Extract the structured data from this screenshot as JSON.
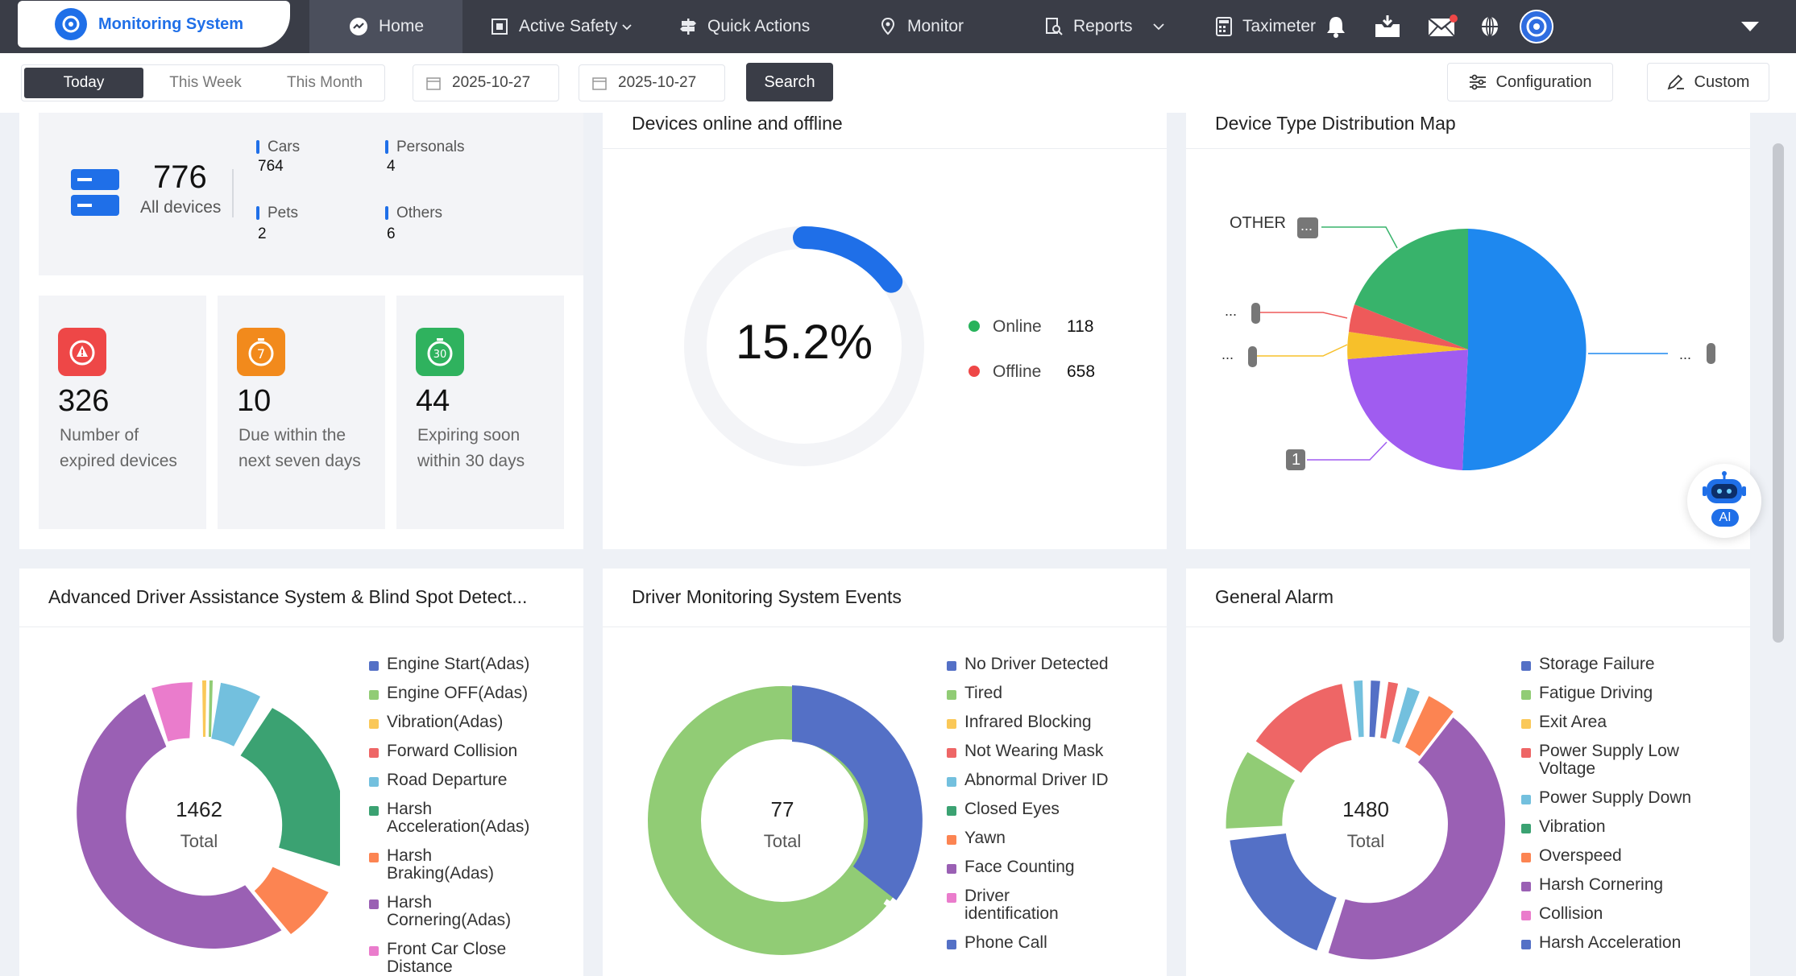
{
  "brand": {
    "title": "Monitoring System"
  },
  "nav": {
    "home": "Home",
    "active_safety": "Active Safety",
    "quick_actions": "Quick Actions",
    "monitor": "Monitor",
    "reports": "Reports",
    "taximeter": "Taximeter"
  },
  "toolbar": {
    "ranges": [
      "Today",
      "This Week",
      "This Month"
    ],
    "start_date": "2025-10-27",
    "end_date": "2025-10-27",
    "search": "Search",
    "configuration": "Configuration",
    "custom": "Custom"
  },
  "devices": {
    "total": "776",
    "total_label": "All devices",
    "cars_label": "Cars",
    "cars": "764",
    "personals_label": "Personals",
    "personals": "4",
    "pets_label": "Pets",
    "pets": "2",
    "others_label": "Others",
    "others": "6"
  },
  "alarms": [
    {
      "value": "326",
      "label": "Number of expired devices",
      "color": "#ee4747"
    },
    {
      "value": "10",
      "label": "Due within the next seven days",
      "color": "#f28a1c"
    },
    {
      "value": "44",
      "label": "Expiring soon within 30 days",
      "color": "#2fb25e"
    }
  ],
  "online_panel": {
    "title": "Devices online and offline",
    "percent": "15.2%",
    "online_label": "Online",
    "online": "118",
    "offline_label": "Offline",
    "offline": "658",
    "online_color": "#27b35b",
    "offline_color": "#ee4747"
  },
  "type_panel": {
    "title": "Device Type Distribution Map",
    "labels": {
      "other": "OTHER",
      "dots": "...",
      "one": "1"
    }
  },
  "adas_panel": {
    "title": "Advanced Driver Assistance System & Blind Spot Detect...",
    "total": "1462",
    "total_label": "Total",
    "legend": [
      "Engine Start(Adas)",
      "Engine OFF(Adas)",
      "Vibration(Adas)",
      "Forward Collision",
      "Road Departure",
      "Harsh Acceleration(Adas)",
      "Harsh Braking(Adas)",
      "Harsh Cornering(Adas)",
      "Front Car Close Distance"
    ]
  },
  "dms_panel": {
    "title": "Driver Monitoring System Events",
    "total": "77",
    "total_label": "Total",
    "legend": [
      "No Driver Detected",
      "Tired",
      "Infrared Blocking",
      "Not Wearing Mask",
      "Abnormal Driver ID",
      "Closed Eyes",
      "Yawn",
      "Face Counting",
      "Driver identification",
      "Phone Call"
    ]
  },
  "general_panel": {
    "title": "General Alarm",
    "total": "1480",
    "total_label": "Total",
    "legend": [
      "Storage Failure",
      "Fatigue Driving",
      "Exit Area",
      "Power Supply Low Voltage",
      "Power Supply Down",
      "Vibration",
      "Overspeed",
      "Harsh Cornering",
      "Collision",
      "Harsh Acceleration"
    ]
  },
  "legend_colors": [
    "#5470c6",
    "#91cc75",
    "#fac858",
    "#ee6666",
    "#73c0de",
    "#3ba272",
    "#fc8452",
    "#9a60b4",
    "#ea7ccc",
    "#5470c6"
  ],
  "ai": {
    "label": "AI"
  }
}
